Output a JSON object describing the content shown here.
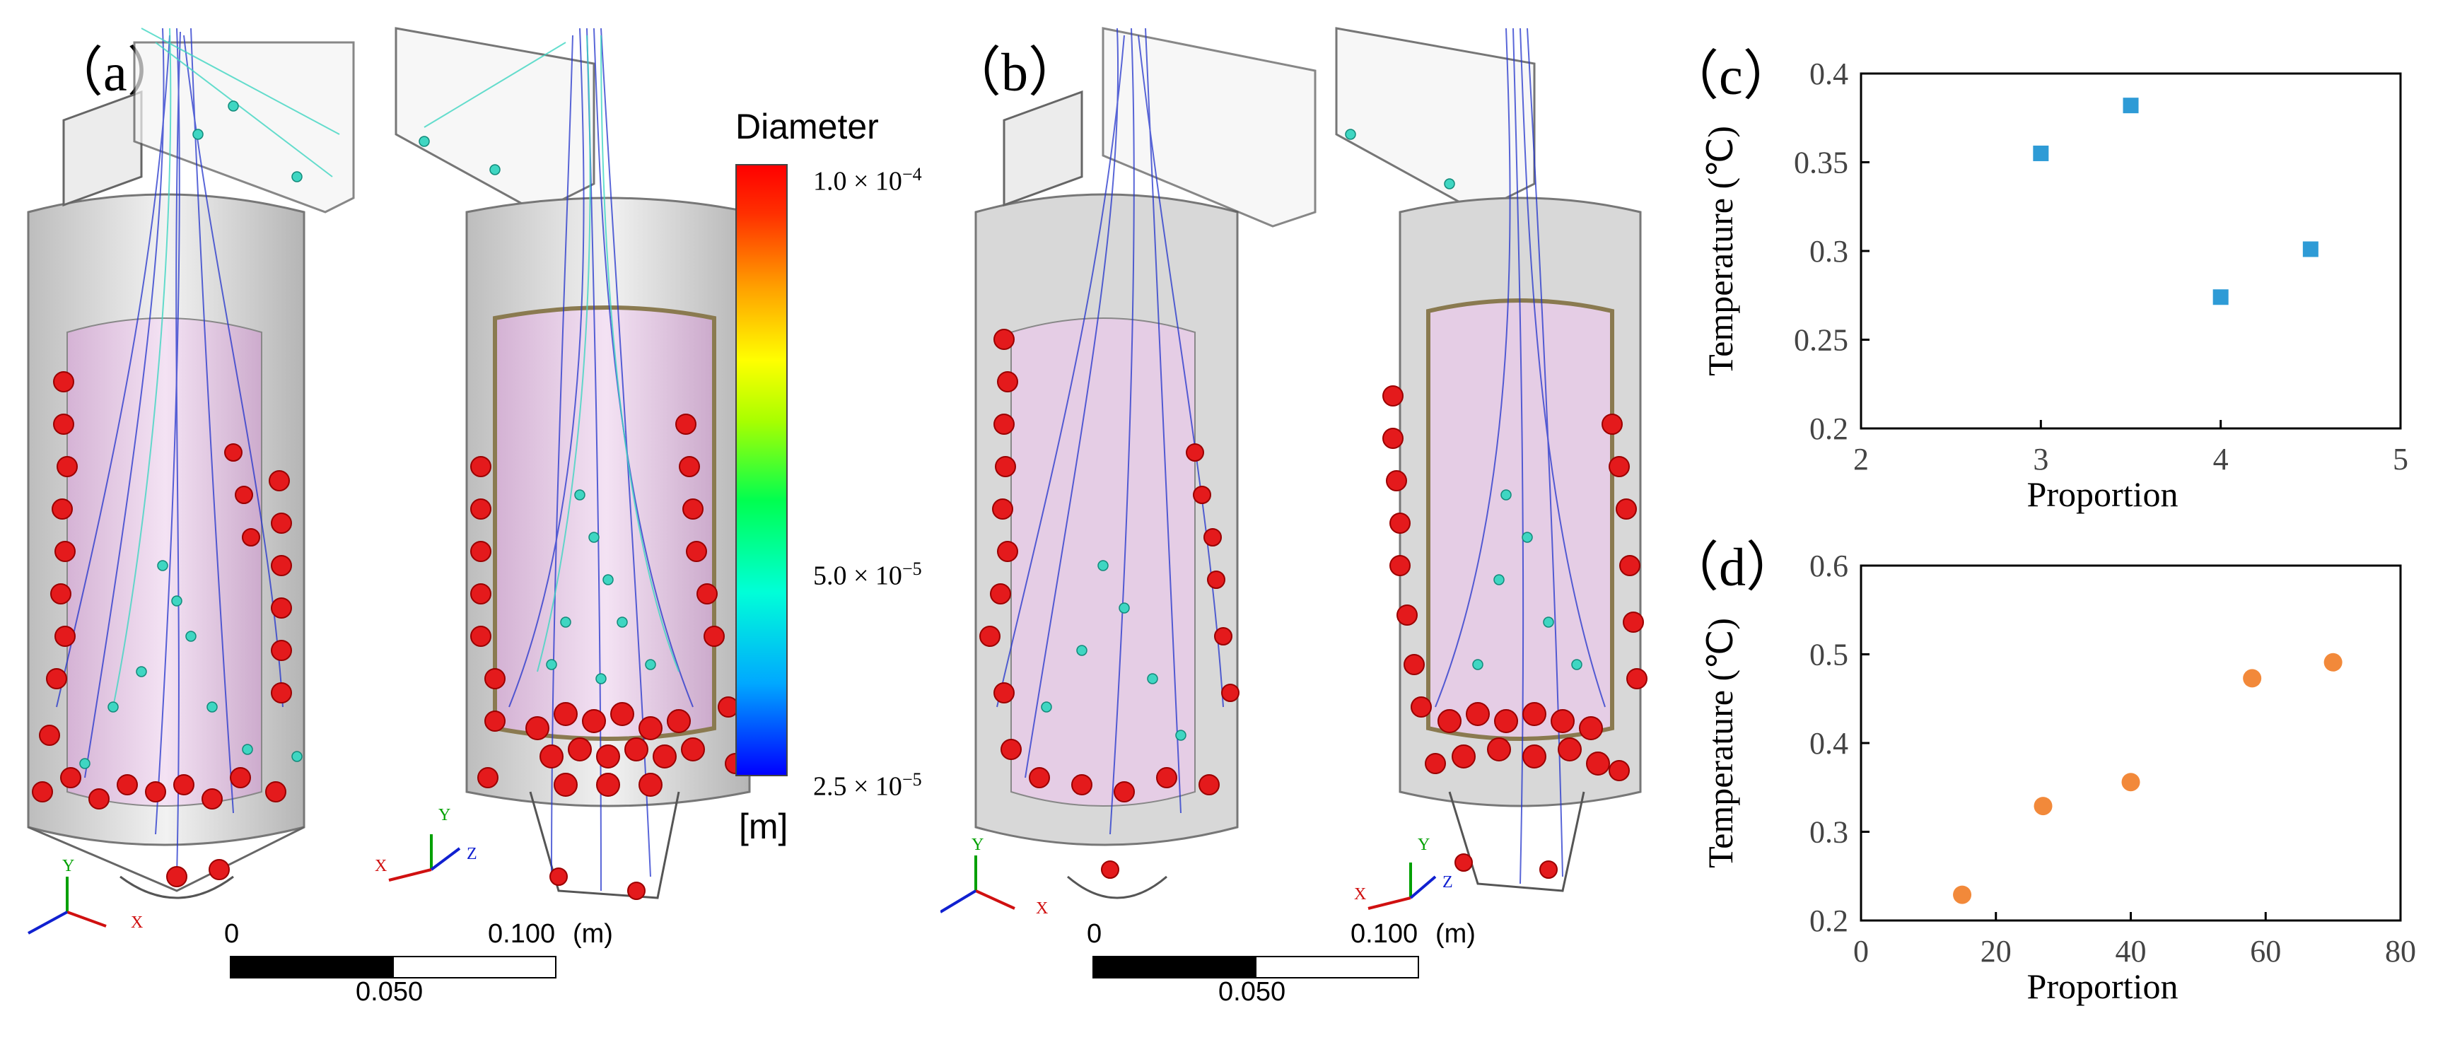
{
  "panels": {
    "a": "（a）",
    "b": "（b）",
    "c": "（c）",
    "d": "（d）"
  },
  "colorbar": {
    "title": "Diameter",
    "unit": "[m]",
    "max_label": "1.0 × 10",
    "max_exp": "−4",
    "mid_label": "5.0 × 10",
    "mid_exp": "−5",
    "min_label": "2.5 × 10",
    "min_exp": "−5",
    "colors": [
      "#0000ff",
      "#00b4ff",
      "#00ffd0",
      "#00ff40",
      "#a0ff00",
      "#ffff00",
      "#ffa000",
      "#ff3000",
      "#ff0000"
    ]
  },
  "scalebars": [
    {
      "zero": "0",
      "end": "0.100",
      "unit": "(m)",
      "mid": "0.050"
    },
    {
      "zero": "0",
      "end": "0.100",
      "unit": "(m)",
      "mid": "0.050"
    }
  ],
  "axes_triads": [
    "X",
    "Y",
    "Z"
  ],
  "colors": {
    "particle_red": "#e41a1c",
    "particle_cyan": "#3fd6c2",
    "track_blue": "#2233cc",
    "shell_gray": "#cfcfcf",
    "liner_pink": "#e6b3e6",
    "chart_c_marker": "#2e9bd6",
    "chart_d_marker": "#f2893a"
  },
  "chart_data": [
    {
      "panel": "c",
      "type": "scatter",
      "xlabel": "Proportion",
      "ylabel": "Temperature (℃)",
      "xlim": [
        2,
        5
      ],
      "ylim": [
        0.2,
        0.4
      ],
      "xticks": [
        2,
        3,
        4,
        5
      ],
      "yticks": [
        0.2,
        0.25,
        0.3,
        0.35,
        0.4
      ],
      "xtick_labels": [
        "2",
        "3",
        "4",
        "5"
      ],
      "ytick_labels": [
        "0.2",
        "0.25",
        "0.3",
        "0.35",
        "0.4"
      ],
      "marker": "square",
      "x": [
        3,
        3.5,
        4,
        4.5
      ],
      "y": [
        0.355,
        0.382,
        0.274,
        0.301
      ]
    },
    {
      "panel": "d",
      "type": "scatter",
      "xlabel": "Proportion",
      "ylabel": "Temperature (℃)",
      "xlim": [
        0,
        80
      ],
      "ylim": [
        0.2,
        0.6
      ],
      "xticks": [
        0,
        20,
        40,
        60,
        80
      ],
      "yticks": [
        0.2,
        0.3,
        0.4,
        0.5,
        0.6
      ],
      "xtick_labels": [
        "0",
        "20",
        "40",
        "60",
        "80"
      ],
      "ytick_labels": [
        "0.2",
        "0.3",
        "0.4",
        "0.5",
        "0.6"
      ],
      "marker": "circle",
      "x": [
        15,
        27,
        40,
        58,
        70
      ],
      "y": [
        0.229,
        0.329,
        0.356,
        0.473,
        0.491
      ]
    }
  ]
}
